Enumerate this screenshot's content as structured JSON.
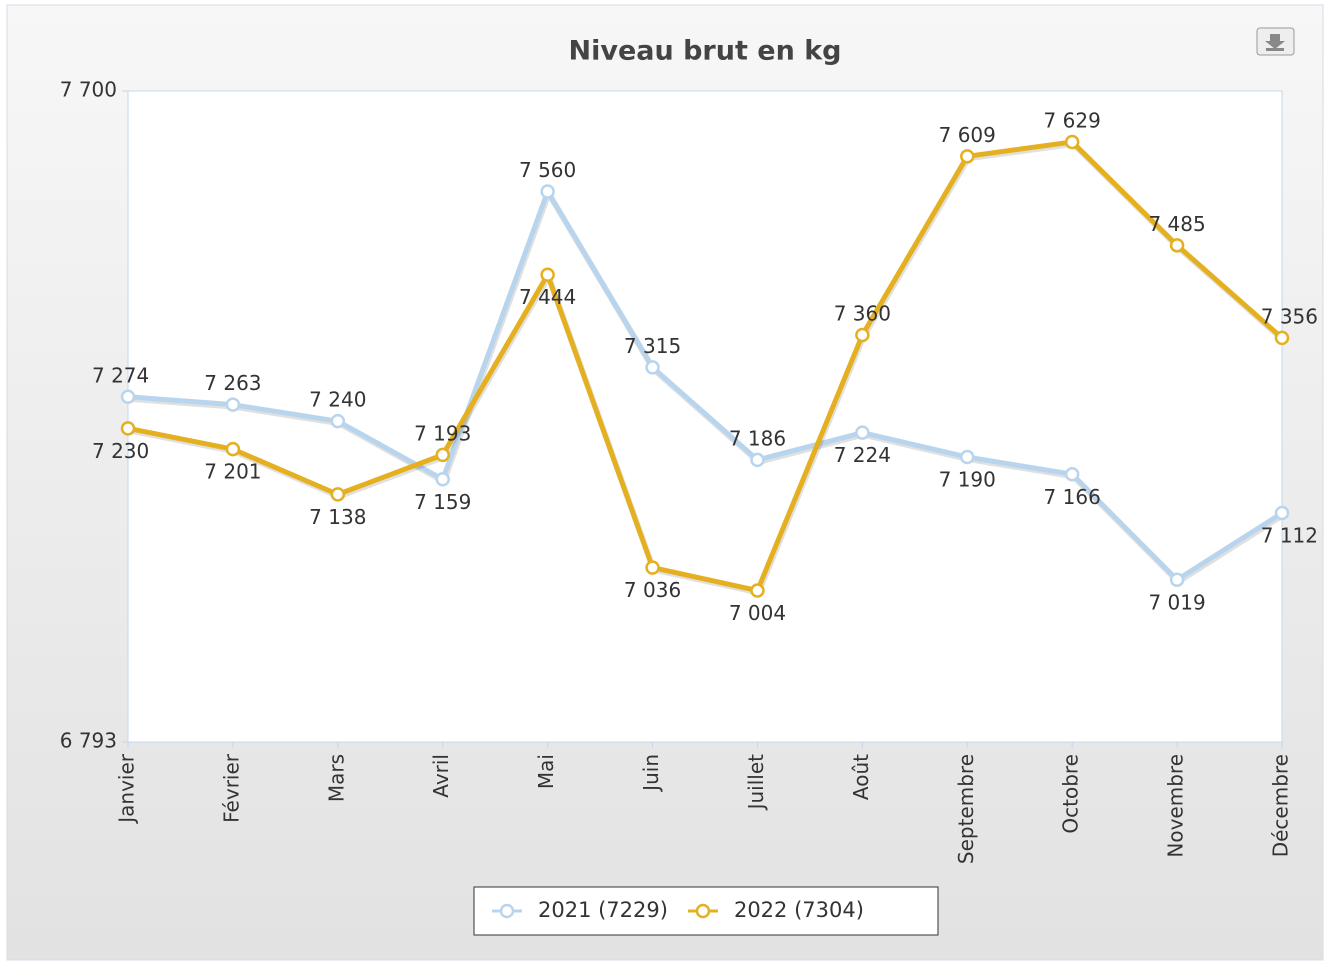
{
  "chart_data": {
    "type": "line",
    "title": "Niveau brut en kg",
    "categories": [
      "Janvier",
      "Février",
      "Mars",
      "Avril",
      "Mai",
      "Juin",
      "Juillet",
      "Août",
      "Septembre",
      "Octobre",
      "Novembre",
      "Décembre"
    ],
    "series": [
      {
        "name": "2021 (7229)",
        "color": "#b9d5ee",
        "values": [
          7274,
          7263,
          7240,
          7159,
          7560,
          7315,
          7186,
          7224,
          7190,
          7166,
          7019,
          7112
        ],
        "value_labels": [
          "7 274",
          "7 263",
          "7 240",
          "7 159",
          "7 560",
          "7 315",
          "7 186",
          "7 224",
          "7 190",
          "7 166",
          "7 019",
          "7 112"
        ]
      },
      {
        "name": "2022 (7304)",
        "color": "#e5b020",
        "values": [
          7230,
          7201,
          7138,
          7193,
          7444,
          7036,
          7004,
          7360,
          7609,
          7629,
          7485,
          7356
        ],
        "value_labels": [
          "7 230",
          "7 201",
          "7 138",
          "7 193",
          "7 444",
          "7 036",
          "7 004",
          "7 360",
          "7 609",
          "7 629",
          "7 485",
          "7 356"
        ]
      }
    ],
    "ylim": [
      6793,
      7700
    ],
    "yticks": [
      {
        "value": 6793,
        "label": "6 793"
      },
      {
        "value": 7700,
        "label": "7 700"
      }
    ]
  }
}
